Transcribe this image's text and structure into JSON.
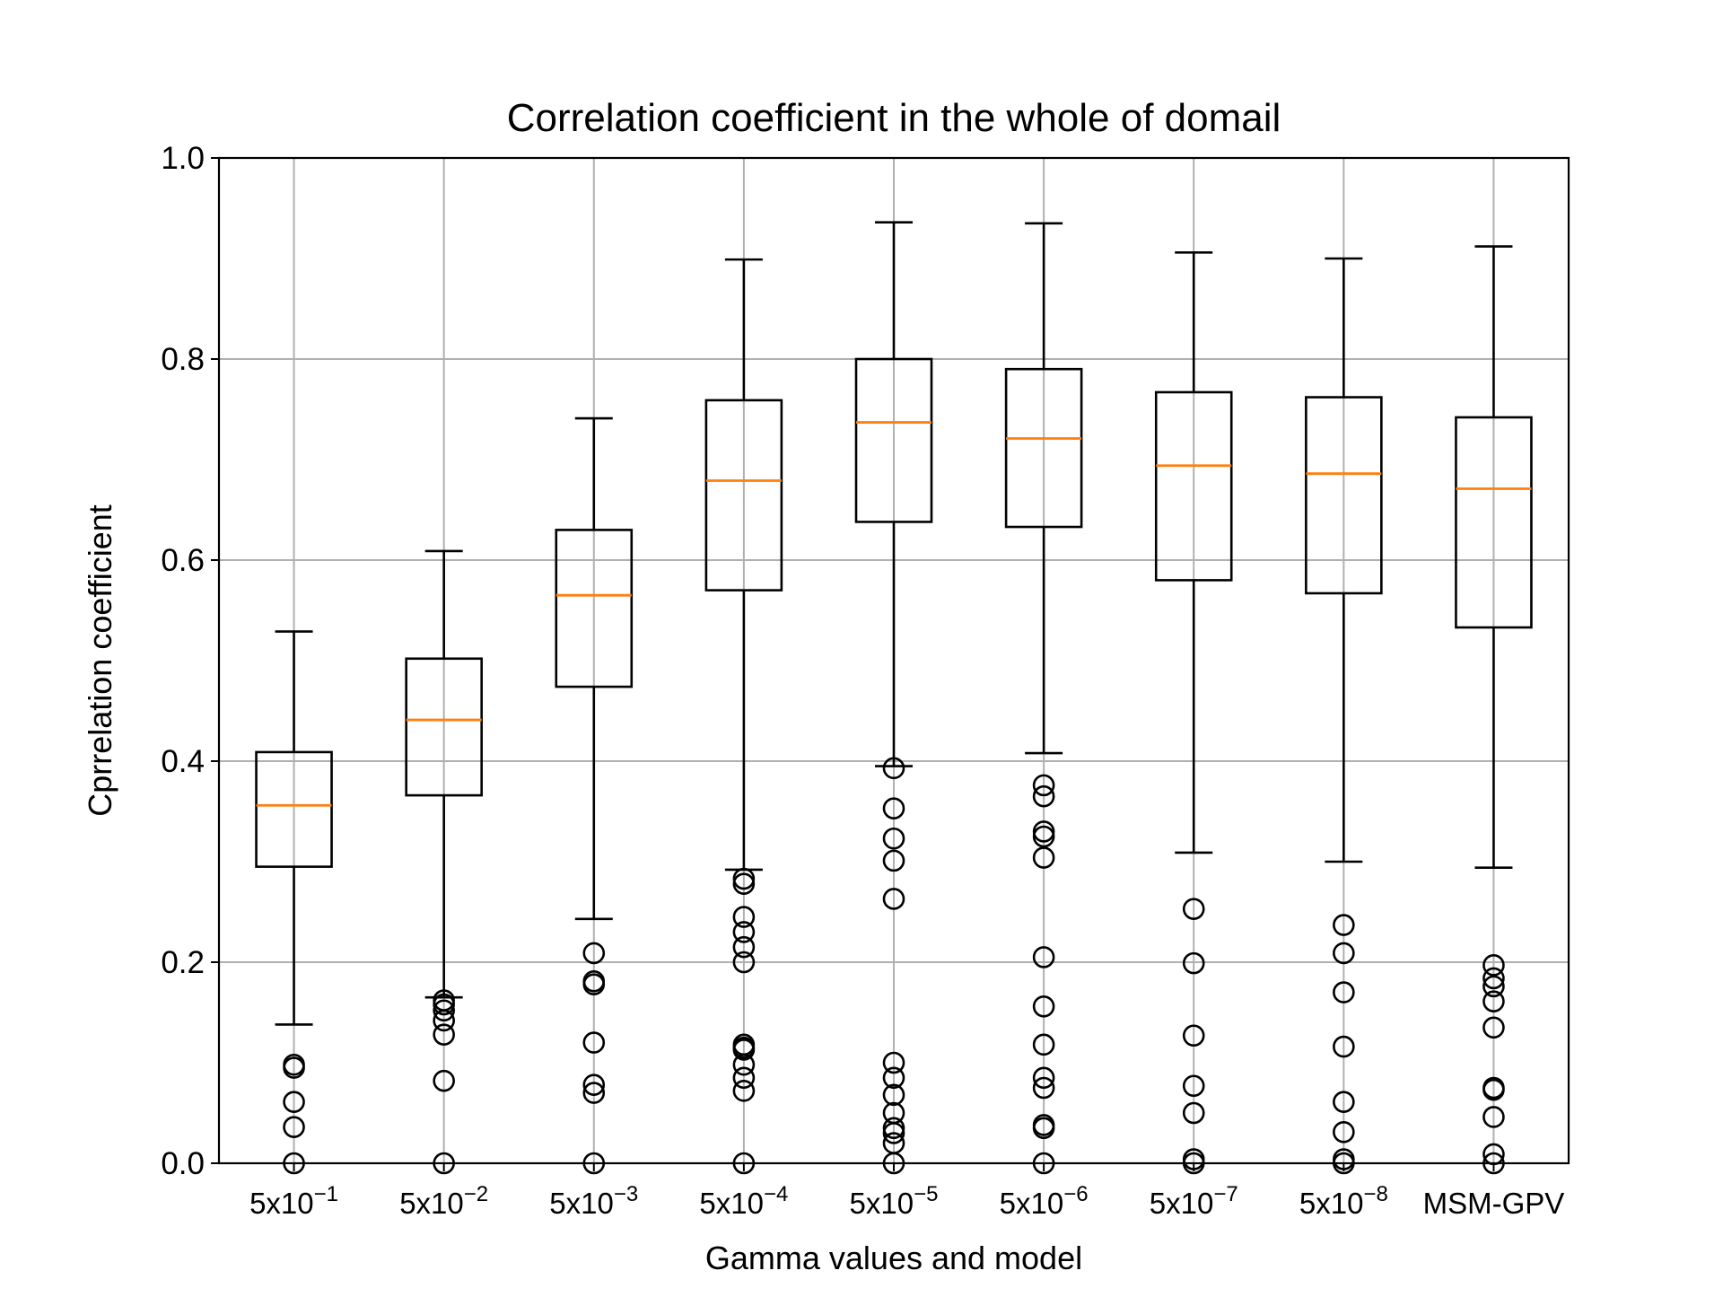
{
  "chart_data": {
    "type": "box",
    "title": "Correlation coefficient in the whole of domail",
    "xlabel": "Gamma values and model",
    "ylabel": "Cprrelation coefficient",
    "ylim": [
      0.0,
      1.0
    ],
    "yticks": [
      "0.0",
      "0.2",
      "0.4",
      "0.6",
      "0.8",
      "1.0"
    ],
    "grid": true,
    "colors": {
      "box": "#000000",
      "median": "#ff7f0e",
      "grid": "#b0b0b0"
    },
    "categories": [
      {
        "base": "5x10",
        "exp": "−1",
        "text": "5x10^-1"
      },
      {
        "base": "5x10",
        "exp": "−2",
        "text": "5x10^-2"
      },
      {
        "base": "5x10",
        "exp": "−3",
        "text": "5x10^-3"
      },
      {
        "base": "5x10",
        "exp": "−4",
        "text": "5x10^-4"
      },
      {
        "base": "5x10",
        "exp": "−5",
        "text": "5x10^-5"
      },
      {
        "base": "5x10",
        "exp": "−6",
        "text": "5x10^-6"
      },
      {
        "base": "5x10",
        "exp": "−7",
        "text": "5x10^-7"
      },
      {
        "base": "5x10",
        "exp": "−8",
        "text": "5x10^-8"
      },
      {
        "base": "MSM-GPV",
        "exp": "",
        "text": "MSM-GPV"
      }
    ],
    "boxes": [
      {
        "whislo": 0.138,
        "q1": 0.295,
        "med": 0.356,
        "q3": 0.409,
        "whishi": 0.529,
        "fliers": [
          0.098,
          0.095,
          0.061,
          0.036,
          0.0
        ]
      },
      {
        "whislo": 0.165,
        "q1": 0.366,
        "med": 0.441,
        "q3": 0.502,
        "whishi": 0.609,
        "fliers": [
          0.162,
          0.158,
          0.152,
          0.142,
          0.128,
          0.082,
          0.0
        ]
      },
      {
        "whislo": 0.243,
        "q1": 0.474,
        "med": 0.565,
        "q3": 0.63,
        "whishi": 0.741,
        "fliers": [
          0.209,
          0.181,
          0.178,
          0.12,
          0.078,
          0.07,
          0.0
        ]
      },
      {
        "whislo": 0.292,
        "q1": 0.57,
        "med": 0.679,
        "q3": 0.759,
        "whishi": 0.899,
        "fliers": [
          0.283,
          0.278,
          0.245,
          0.23,
          0.215,
          0.2,
          0.118,
          0.115,
          0.113,
          0.098,
          0.085,
          0.072,
          0.0
        ]
      },
      {
        "whislo": 0.395,
        "q1": 0.638,
        "med": 0.737,
        "q3": 0.8,
        "whishi": 0.936,
        "fliers": [
          0.393,
          0.353,
          0.323,
          0.301,
          0.263,
          0.1,
          0.085,
          0.068,
          0.05,
          0.035,
          0.03,
          0.02,
          0.0
        ]
      },
      {
        "whislo": 0.408,
        "q1": 0.633,
        "med": 0.721,
        "q3": 0.79,
        "whishi": 0.935,
        "fliers": [
          0.376,
          0.365,
          0.33,
          0.325,
          0.304,
          0.205,
          0.156,
          0.118,
          0.085,
          0.075,
          0.038,
          0.035,
          0.0
        ]
      },
      {
        "whislo": 0.309,
        "q1": 0.58,
        "med": 0.694,
        "q3": 0.767,
        "whishi": 0.906,
        "fliers": [
          0.253,
          0.199,
          0.127,
          0.077,
          0.05,
          0.004,
          0.0
        ]
      },
      {
        "whislo": 0.3,
        "q1": 0.567,
        "med": 0.686,
        "q3": 0.762,
        "whishi": 0.9,
        "fliers": [
          0.237,
          0.209,
          0.17,
          0.116,
          0.061,
          0.031,
          0.004,
          0.0
        ]
      },
      {
        "whislo": 0.294,
        "q1": 0.533,
        "med": 0.671,
        "q3": 0.742,
        "whishi": 0.912,
        "fliers": [
          0.197,
          0.184,
          0.176,
          0.161,
          0.135,
          0.075,
          0.073,
          0.046,
          0.009,
          0.0
        ]
      }
    ]
  }
}
